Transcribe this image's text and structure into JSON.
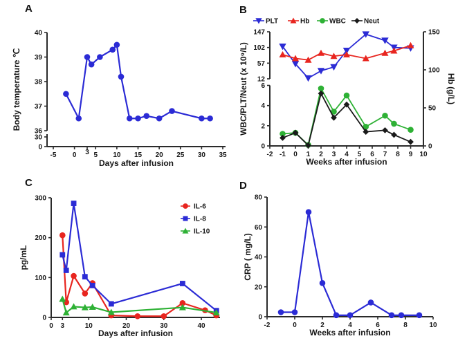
{
  "panels": [
    {
      "id": "A",
      "label": "A"
    },
    {
      "id": "B",
      "label": "B"
    },
    {
      "id": "C",
      "label": "C"
    },
    {
      "id": "D",
      "label": "D"
    }
  ],
  "chart_data": [
    {
      "panel": "A",
      "type": "line",
      "xlabel": "Days after infusion",
      "ylabel": "Body temperature ℃",
      "x_range": [
        -5,
        35
      ],
      "x_ticks": [
        -5,
        0,
        3,
        5,
        10,
        15,
        20,
        25,
        30,
        35
      ],
      "y_axis_segments": [
        {
          "range": [
            36,
            40
          ],
          "ticks": [
            40,
            39,
            38,
            37,
            36
          ]
        },
        {
          "range": [
            0,
            30
          ],
          "ticks": [
            30,
            0
          ]
        }
      ],
      "grid": false,
      "series": [
        {
          "name": "Body temperature",
          "color": "#2b2bd5",
          "marker": "circle",
          "y_scale": "seg0",
          "x": [
            -2,
            1,
            3,
            4,
            6,
            9,
            10,
            11,
            13,
            15,
            17,
            20,
            23,
            30,
            32
          ],
          "y": [
            37.5,
            36.5,
            39.0,
            38.7,
            39.0,
            39.3,
            39.5,
            38.2,
            36.5,
            36.5,
            36.6,
            36.5,
            36.8,
            36.5,
            36.5
          ]
        }
      ]
    },
    {
      "panel": "B",
      "type": "line",
      "xlabel": "Weeks after infusion",
      "ylabel": "WBC/PLT/Neut (x 10⁹/L)",
      "ylabel_right": "Hb (g/L)",
      "x_range": [
        -2,
        10
      ],
      "x_ticks": [
        -2,
        -1,
        0,
        1,
        2,
        3,
        4,
        5,
        6,
        7,
        8,
        9,
        10
      ],
      "y_axis_segments": [
        {
          "range": [
            12,
            147
          ],
          "ticks": [
            147,
            102,
            57,
            12
          ]
        },
        {
          "range": [
            0,
            6
          ],
          "ticks": [
            6,
            4,
            2,
            0
          ]
        }
      ],
      "right_axis": {
        "range": [
          0,
          150
        ],
        "ticks": [
          150,
          100,
          50,
          0
        ]
      },
      "legend": [
        "PLT",
        "Hb",
        "WBC",
        "Neut"
      ],
      "legend_position": "top",
      "grid": false,
      "series": [
        {
          "name": "PLT",
          "color": "#2b2bd5",
          "marker": "triangle-down",
          "y_scale": "seg0",
          "x": [
            -1,
            0,
            1,
            2,
            3,
            4,
            5.5,
            7,
            7.7,
            9
          ],
          "y": [
            105,
            55,
            14,
            35,
            46,
            93,
            140,
            122,
            102,
            100
          ]
        },
        {
          "name": "Hb",
          "color": "#e8251f",
          "marker": "triangle-up",
          "y_scale": "right",
          "x": [
            -1,
            0,
            1,
            2,
            3,
            4,
            5.5,
            7,
            7.7,
            9
          ],
          "y": [
            120,
            115,
            113,
            122,
            118,
            120,
            115,
            122,
            125,
            132
          ]
        },
        {
          "name": "WBC",
          "color": "#2eb135",
          "marker": "circle",
          "y_scale": "seg1",
          "x": [
            -1,
            0,
            1,
            2,
            3,
            4,
            5.5,
            7,
            7.7,
            9
          ],
          "y": [
            1.2,
            1.3,
            0.1,
            5.7,
            3.4,
            5.0,
            1.9,
            3.0,
            2.2,
            1.6
          ]
        },
        {
          "name": "Neut",
          "color": "#1a1a1a",
          "marker": "diamond",
          "y_scale": "seg1",
          "x": [
            -1,
            0,
            1,
            2,
            3,
            4,
            5.5,
            7,
            7.7,
            9
          ],
          "y": [
            0.8,
            1.3,
            0.05,
            5.2,
            2.8,
            4.1,
            1.4,
            1.55,
            1.1,
            0.4
          ]
        }
      ]
    },
    {
      "panel": "C",
      "type": "line",
      "xlabel": "Days after infusion",
      "ylabel": "pg/mL",
      "x_range": [
        0,
        45
      ],
      "x_ticks": [
        0,
        3,
        10,
        20,
        30,
        40
      ],
      "y_axis_segments": [
        {
          "range": [
            0,
            300
          ],
          "ticks": [
            300,
            200,
            100,
            0
          ]
        }
      ],
      "legend": [
        "IL-6",
        "IL-8",
        "IL-10"
      ],
      "legend_position": "top-right",
      "grid": false,
      "series": [
        {
          "name": "IL-6",
          "color": "#e8251f",
          "marker": "circle",
          "y_scale": "seg0",
          "x": [
            3,
            4,
            6,
            9,
            11,
            16,
            23,
            30,
            35,
            41,
            44
          ],
          "y": [
            206,
            38,
            104,
            60,
            86,
            5,
            3,
            3,
            36,
            18,
            5
          ]
        },
        {
          "name": "IL-8",
          "color": "#2b2bd5",
          "marker": "square",
          "y_scale": "seg0",
          "x": [
            3,
            4,
            6,
            9,
            11,
            16,
            35,
            44
          ],
          "y": [
            157,
            118,
            286,
            102,
            80,
            34,
            85,
            17
          ]
        },
        {
          "name": "IL-10",
          "color": "#2eb135",
          "marker": "triangle-up",
          "y_scale": "seg0",
          "x": [
            3,
            4,
            6,
            9,
            11,
            16,
            35,
            44
          ],
          "y": [
            46,
            12,
            27,
            25,
            26,
            13,
            25,
            12
          ]
        }
      ]
    },
    {
      "panel": "D",
      "type": "line",
      "xlabel": "Weeks after infusion",
      "ylabel": "CRP ( mg/L)",
      "x_range": [
        -2,
        10
      ],
      "x_ticks": [
        -2,
        0,
        2,
        4,
        6,
        8,
        10
      ],
      "y_axis_segments": [
        {
          "range": [
            0,
            80
          ],
          "ticks": [
            80,
            60,
            40,
            20,
            0
          ]
        }
      ],
      "grid": false,
      "series": [
        {
          "name": "CRP",
          "color": "#2b2bd5",
          "marker": "circle",
          "y_scale": "seg0",
          "x": [
            -1,
            0,
            1,
            2,
            3,
            4,
            5.5,
            7,
            7.7,
            9
          ],
          "y": [
            3,
            3,
            70,
            22.5,
            1,
            1,
            9.5,
            1,
            1,
            1
          ]
        }
      ]
    }
  ]
}
